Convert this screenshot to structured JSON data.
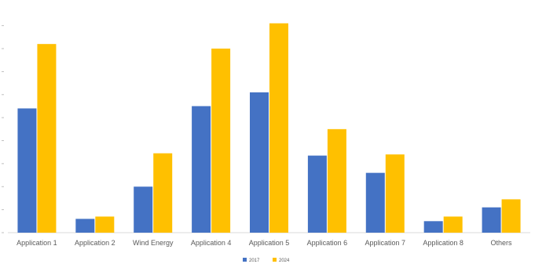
{
  "chart_data": {
    "type": "bar",
    "title": "",
    "xlabel": "",
    "ylabel": "",
    "categories": [
      "Application 1",
      "Application 2",
      "Wind Energy",
      "Application 4",
      "Application 5",
      "Application 6",
      "Application 7",
      "Application 8",
      "Others"
    ],
    "series": [
      {
        "name": "2017",
        "color": "#4472C4",
        "values": [
          5.4,
          0.6,
          2.0,
          5.5,
          6.1,
          3.35,
          2.6,
          0.5,
          1.1
        ]
      },
      {
        "name": "2024",
        "color": "#FFC000",
        "values": [
          8.2,
          0.7,
          3.45,
          8.0,
          9.1,
          4.5,
          3.4,
          0.7,
          1.45
        ]
      }
    ],
    "ylim": [
      0,
      9.5
    ],
    "yticks": [
      0,
      1,
      2,
      3,
      4,
      5,
      6,
      7,
      8,
      9
    ],
    "grid": false,
    "legend": "bottom"
  }
}
